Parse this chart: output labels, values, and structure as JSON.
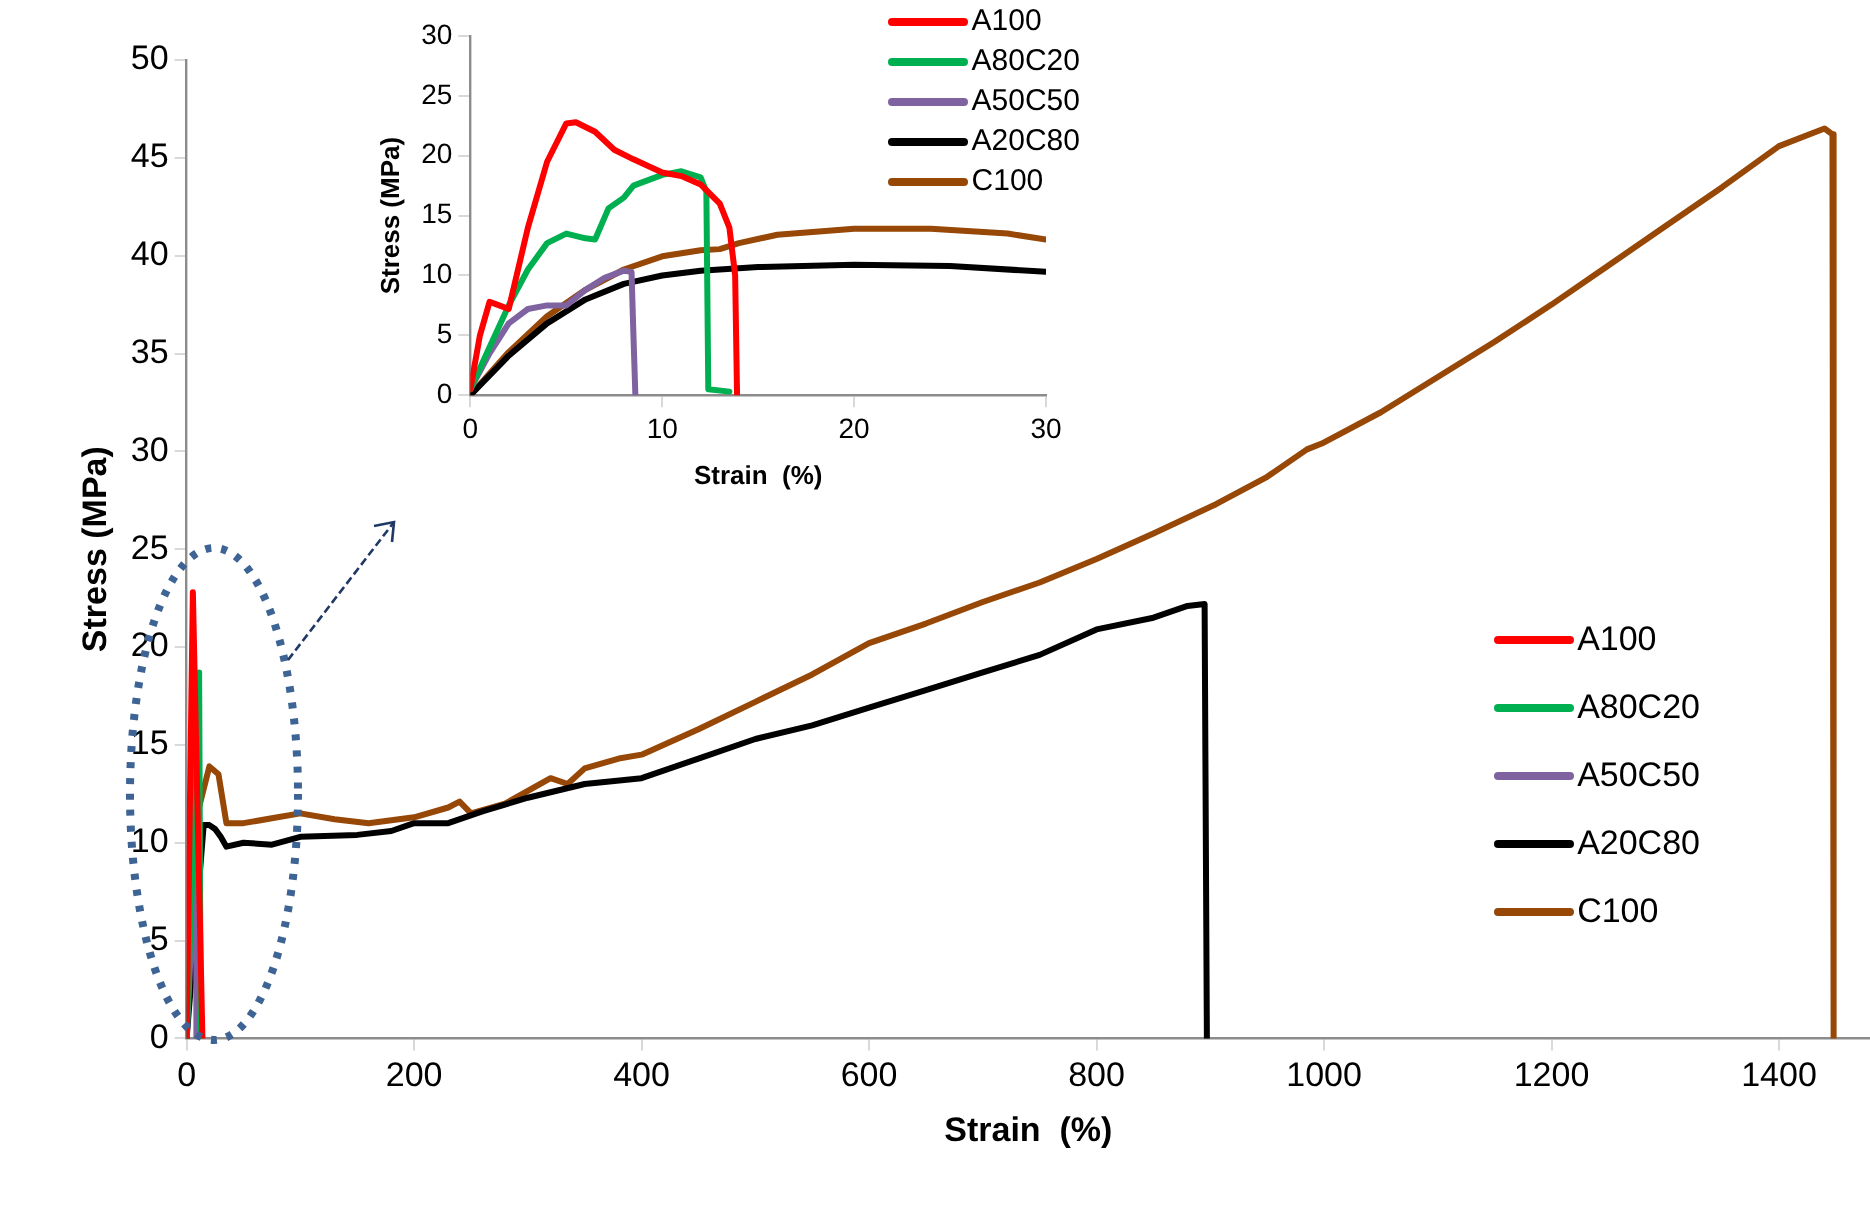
{
  "chart_data": [
    {
      "type": "line",
      "xlabel": "Strain  (%)",
      "ylabel": "Stress (MPa)",
      "xlim": [
        0,
        1480
      ],
      "ylim": [
        0,
        50
      ],
      "xticks": [
        0,
        200,
        400,
        600,
        800,
        1000,
        1200,
        1400
      ],
      "yticks": [
        0,
        5,
        10,
        15,
        20,
        25,
        30,
        35,
        40,
        45,
        50
      ],
      "grid": false,
      "legend": "right",
      "marker": "none",
      "line_style": "solid",
      "series": [
        {
          "name": "A100",
          "color": "#ff0000",
          "x": [
            0,
            5.5,
            13.9
          ],
          "values": [
            0,
            22.8,
            0
          ]
        },
        {
          "name": "A80C20",
          "color": "#00b050",
          "x": [
            0,
            11,
            12.4
          ],
          "values": [
            0,
            18.7,
            0
          ]
        },
        {
          "name": "A50C50",
          "color": "#7f62a0",
          "x": [
            0,
            8.4,
            8.6
          ],
          "values": [
            0,
            10.3,
            0
          ]
        },
        {
          "name": "A20C80",
          "color": "#000000",
          "x": [
            0,
            15,
            20,
            25,
            30,
            35,
            50,
            75,
            100,
            150,
            180,
            200,
            230,
            260,
            300,
            350,
            400,
            450,
            500,
            550,
            600,
            650,
            700,
            750,
            800,
            850,
            880,
            895,
            897
          ],
          "values": [
            0,
            10.9,
            10.9,
            10.7,
            10.3,
            9.8,
            10,
            9.9,
            10.3,
            10.4,
            10.6,
            11,
            11,
            11.6,
            12.3,
            13,
            13.3,
            14.3,
            15.3,
            16,
            16.9,
            17.8,
            18.7,
            19.6,
            20.9,
            21.5,
            22.1,
            22.2,
            0
          ]
        },
        {
          "name": "C100",
          "color": "#974706",
          "x": [
            0,
            10,
            20,
            28,
            35,
            50,
            80,
            100,
            130,
            160,
            200,
            230,
            240,
            250,
            280,
            320,
            335,
            350,
            380,
            400,
            450,
            500,
            550,
            600,
            650,
            700,
            750,
            800,
            850,
            905,
            950,
            985,
            998,
            1050,
            1100,
            1150,
            1200,
            1250,
            1300,
            1350,
            1400,
            1440,
            1447,
            1448
          ],
          "values": [
            0,
            11.6,
            13.9,
            13.5,
            11,
            11,
            11.3,
            11.5,
            11.2,
            11,
            11.3,
            11.8,
            12.1,
            11.5,
            12,
            13.3,
            13,
            13.8,
            14.3,
            14.5,
            15.8,
            17.2,
            18.6,
            20.2,
            21.2,
            22.3,
            23.3,
            24.5,
            25.8,
            27.3,
            28.7,
            30.1,
            30.4,
            32,
            33.8,
            35.6,
            37.5,
            39.5,
            41.5,
            43.5,
            45.6,
            46.5,
            46.2,
            0
          ]
        }
      ]
    },
    {
      "type": "line",
      "xlabel": "Strain  (%)",
      "ylabel": "Stress (MPa)",
      "xlim": [
        0,
        30
      ],
      "ylim": [
        0,
        30
      ],
      "xticks": [
        0,
        10,
        20,
        30
      ],
      "yticks": [
        0,
        5,
        10,
        15,
        20,
        25,
        30
      ],
      "grid": false,
      "legend": "top right",
      "marker": "none",
      "line_style": "solid",
      "series": [
        {
          "name": "A100",
          "color": "#ff0000",
          "x": [
            0,
            0.5,
            1,
            1.5,
            2,
            3,
            4,
            5,
            5.5,
            6.5,
            7.5,
            8.5,
            10,
            11,
            12,
            13,
            13.5,
            13.8,
            13.9
          ],
          "values": [
            0.5,
            5,
            7.8,
            7.5,
            7.2,
            14,
            19.5,
            22.7,
            22.8,
            22,
            20.5,
            19.7,
            18.6,
            18.3,
            17.6,
            16,
            14,
            10,
            0
          ]
        },
        {
          "name": "A80C20",
          "color": "#00b050",
          "x": [
            0,
            1,
            2,
            3,
            4,
            5,
            6,
            6.5,
            7.2,
            8,
            8.5,
            10,
            11,
            12,
            12.3,
            12.4,
            13.5
          ],
          "values": [
            0.5,
            4,
            7.5,
            10.5,
            12.7,
            13.5,
            13.1,
            13,
            15.6,
            16.5,
            17.5,
            18.4,
            18.7,
            18.2,
            17,
            0.5,
            0.3
          ]
        },
        {
          "name": "A50C50",
          "color": "#7f62a0",
          "x": [
            0,
            1,
            2,
            3,
            4,
            5,
            6,
            7,
            8,
            8.4,
            8.5,
            8.6
          ],
          "values": [
            0.5,
            3.5,
            6,
            7.2,
            7.5,
            7.5,
            8.8,
            9.8,
            10.4,
            10.3,
            5,
            0
          ]
        },
        {
          "name": "A20C80",
          "color": "#000000",
          "x": [
            0,
            2,
            4,
            6,
            8,
            10,
            12,
            15,
            20,
            25,
            30
          ],
          "values": [
            0,
            3.3,
            6,
            8,
            9.3,
            10,
            10.4,
            10.7,
            10.9,
            10.8,
            10.3
          ]
        },
        {
          "name": "C100",
          "color": "#974706",
          "x": [
            0,
            2,
            4,
            6,
            8,
            10,
            12,
            13,
            14,
            16,
            20,
            24,
            28,
            30
          ],
          "values": [
            0,
            3.6,
            6.6,
            8.8,
            10.5,
            11.6,
            12.1,
            12.2,
            12.7,
            13.4,
            13.9,
            13.9,
            13.5,
            13
          ]
        }
      ]
    }
  ]
}
